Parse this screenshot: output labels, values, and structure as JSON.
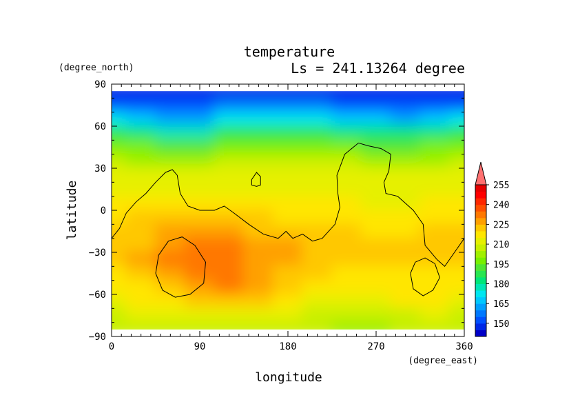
{
  "chart_data": {
    "type": "heatmap",
    "title": "temperature",
    "subtitle": "Ls = 241.13264 degree",
    "xlabel": "longitude",
    "ylabel": "latitude",
    "x_units": "(degree_east)",
    "y_units": "(degree_north)",
    "xlim": [
      0,
      360
    ],
    "ylim": [
      -90,
      90
    ],
    "x_ticks": [
      "0",
      "90",
      "180",
      "270",
      "360"
    ],
    "y_ticks": [
      "90",
      "60",
      "30",
      "0",
      "−30",
      "−60",
      "−90"
    ],
    "x_tick_values": [
      0,
      90,
      180,
      270,
      360
    ],
    "y_tick_values": [
      90,
      60,
      30,
      0,
      -30,
      -60,
      -90
    ],
    "data_lat_range": [
      -85,
      85
    ],
    "colorbar": {
      "levels": [
        140,
        145,
        150,
        155,
        160,
        165,
        170,
        175,
        180,
        185,
        190,
        195,
        200,
        205,
        210,
        215,
        220,
        225,
        230,
        235,
        240,
        245,
        250,
        255,
        260
      ],
      "tick_values": [
        150,
        165,
        180,
        195,
        210,
        225,
        240,
        255
      ],
      "tick_labels": [
        "150",
        "165",
        "180",
        "195",
        "210",
        "225",
        "240",
        "255"
      ],
      "colors": [
        "#0000c8",
        "#0028e6",
        "#0050ff",
        "#0078ff",
        "#00a0ff",
        "#00c8ff",
        "#00e6f0",
        "#00e6b4",
        "#00e678",
        "#28e650",
        "#50e632",
        "#78f000",
        "#a0f000",
        "#c8f000",
        "#e6f000",
        "#ffe600",
        "#ffc800",
        "#ffa000",
        "#ff7800",
        "#ff5000",
        "#ff2800",
        "#ff0000",
        "#e60000",
        "#ff7070"
      ],
      "extend": "max"
    },
    "temperature_field": {
      "lon": [
        0,
        30,
        60,
        90,
        120,
        150,
        180,
        210,
        240,
        270,
        300,
        330,
        360
      ],
      "lat": [
        85,
        75,
        65,
        55,
        45,
        35,
        25,
        15,
        5,
        -5,
        -15,
        -25,
        -35,
        -45,
        -55,
        -65,
        -75,
        -85
      ],
      "values": [
        [
          147,
          147,
          147,
          147,
          147,
          147,
          147,
          147,
          147,
          147,
          147,
          147,
          147
        ],
        [
          152,
          154,
          150,
          151,
          156,
          155,
          156,
          157,
          154,
          151,
          152,
          151,
          152
        ],
        [
          172,
          167,
          162,
          163,
          172,
          171,
          171,
          172,
          169,
          166,
          164,
          166,
          172
        ],
        [
          185,
          181,
          178,
          179,
          185,
          186,
          186,
          187,
          184,
          180,
          180,
          182,
          185
        ],
        [
          197,
          195,
          193,
          194,
          197,
          198,
          198,
          199,
          196,
          194,
          193,
          195,
          197
        ],
        [
          205,
          204,
          203,
          204,
          206,
          206,
          206,
          207,
          205,
          203,
          203,
          204,
          205
        ],
        [
          211,
          211,
          211,
          211,
          212,
          212,
          212,
          212,
          211,
          210,
          210,
          211,
          211
        ],
        [
          214,
          214,
          214,
          214,
          214,
          214,
          214,
          214,
          213,
          213,
          213,
          213,
          214
        ],
        [
          216,
          217,
          218,
          218,
          217,
          216,
          216,
          216,
          215,
          214,
          214,
          215,
          216
        ],
        [
          219,
          222,
          223,
          222,
          221,
          220,
          219,
          219,
          218,
          217,
          217,
          218,
          219
        ],
        [
          221,
          223,
          226,
          228,
          228,
          224,
          222,
          221,
          220,
          219,
          219,
          220,
          221
        ],
        [
          222,
          224,
          229,
          230,
          230,
          228,
          225,
          223,
          221,
          220,
          221,
          221,
          222
        ],
        [
          221,
          225,
          230,
          231,
          230,
          229,
          227,
          222,
          220,
          220,
          221,
          221,
          221
        ],
        [
          219,
          223,
          229,
          231,
          231,
          228,
          224,
          220,
          219,
          219,
          219,
          219,
          219
        ],
        [
          216,
          219,
          222,
          228,
          230,
          227,
          221,
          218,
          217,
          217,
          218,
          218,
          216
        ],
        [
          212,
          215,
          218,
          221,
          221,
          220,
          217,
          214,
          213,
          213,
          215,
          215,
          212
        ],
        [
          208,
          210,
          212,
          213,
          213,
          212,
          211,
          209,
          208,
          208,
          209,
          210,
          208
        ],
        [
          205,
          206,
          207,
          207,
          207,
          207,
          206,
          205,
          204,
          204,
          205,
          205,
          205
        ]
      ]
    },
    "contour_lines": [
      {
        "name": "topography-main",
        "points": [
          [
            0,
            -20
          ],
          [
            8,
            -13
          ],
          [
            15,
            -2
          ],
          [
            25,
            6
          ],
          [
            35,
            12
          ],
          [
            45,
            20
          ],
          [
            55,
            27
          ],
          [
            62,
            29
          ],
          [
            67,
            25
          ],
          [
            70,
            12
          ],
          [
            78,
            3
          ],
          [
            90,
            0
          ],
          [
            105,
            0
          ],
          [
            115,
            3
          ],
          [
            125,
            -2
          ],
          [
            140,
            -10
          ],
          [
            155,
            -17
          ],
          [
            170,
            -20
          ],
          [
            178,
            -15
          ],
          [
            185,
            -20
          ],
          [
            195,
            -17
          ],
          [
            205,
            -22
          ],
          [
            215,
            -20
          ],
          [
            228,
            -10
          ],
          [
            233,
            2
          ],
          [
            231,
            12
          ],
          [
            230,
            25
          ],
          [
            238,
            40
          ],
          [
            252,
            48
          ],
          [
            262,
            46
          ],
          [
            275,
            44
          ],
          [
            285,
            40
          ],
          [
            283,
            28
          ],
          [
            278,
            20
          ],
          [
            280,
            12
          ],
          [
            292,
            10
          ],
          [
            308,
            0
          ],
          [
            318,
            -10
          ],
          [
            320,
            -25
          ],
          [
            332,
            -35
          ],
          [
            340,
            -40
          ],
          [
            350,
            -30
          ],
          [
            360,
            -20
          ]
        ]
      },
      {
        "name": "small-loop",
        "points": [
          [
            143,
            22
          ],
          [
            148,
            27
          ],
          [
            152,
            24
          ],
          [
            152,
            18
          ],
          [
            148,
            17
          ],
          [
            143,
            18
          ],
          [
            143,
            22
          ]
        ]
      },
      {
        "name": "hellas-loop",
        "points": [
          [
            45,
            -45
          ],
          [
            48,
            -32
          ],
          [
            58,
            -22
          ],
          [
            72,
            -19
          ],
          [
            85,
            -25
          ],
          [
            96,
            -37
          ],
          [
            94,
            -52
          ],
          [
            80,
            -60
          ],
          [
            65,
            -62
          ],
          [
            52,
            -57
          ],
          [
            45,
            -45
          ]
        ]
      },
      {
        "name": "argyre-loop",
        "points": [
          [
            305,
            -45
          ],
          [
            310,
            -37
          ],
          [
            320,
            -34
          ],
          [
            330,
            -38
          ],
          [
            335,
            -48
          ],
          [
            328,
            -57
          ],
          [
            318,
            -61
          ],
          [
            308,
            -56
          ],
          [
            305,
            -45
          ]
        ]
      }
    ]
  }
}
